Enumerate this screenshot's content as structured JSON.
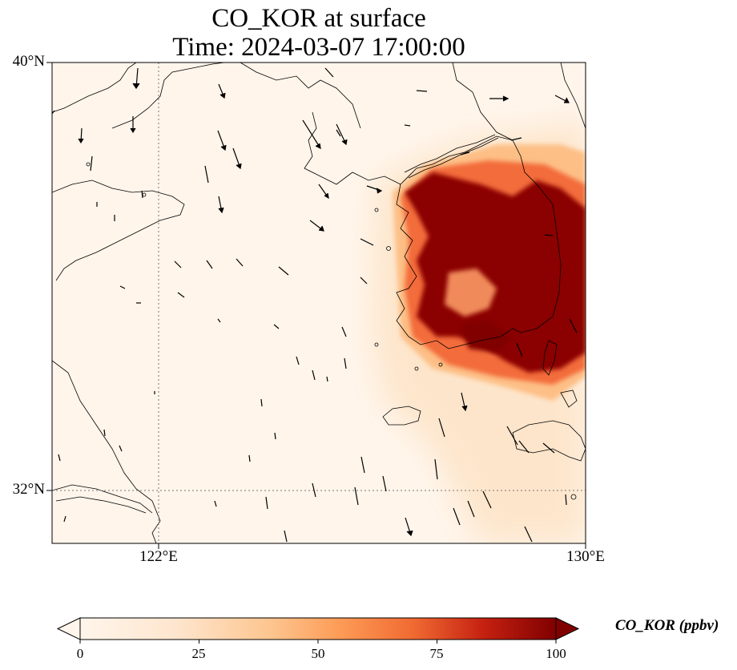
{
  "header": {
    "title_line1": "CO_KOR at surface",
    "title_line2": "Time: 2024-03-07 17:00:00"
  },
  "axes": {
    "lat_labels": [
      "40°N",
      "32°N"
    ],
    "lon_labels": [
      "122°E",
      "130°E"
    ],
    "lat_range": [
      31,
      40
    ],
    "lon_range": [
      120,
      130
    ],
    "gridlines": {
      "lats": [
        32
      ],
      "lons": [
        122
      ],
      "style": "dotted"
    }
  },
  "colorbar": {
    "label": "CO_KOR (ppbv)",
    "ticks": [
      "0",
      "25",
      "50",
      "75",
      "100"
    ],
    "min": 0,
    "max": 100,
    "extend": "both",
    "colormap": [
      "#fff5eb",
      "#fdd9b4",
      "#fda762",
      "#f3701b",
      "#c54102",
      "#800000"
    ]
  },
  "field": {
    "variable": "CO_KOR",
    "units": "ppbv",
    "level": "surface"
  }
}
